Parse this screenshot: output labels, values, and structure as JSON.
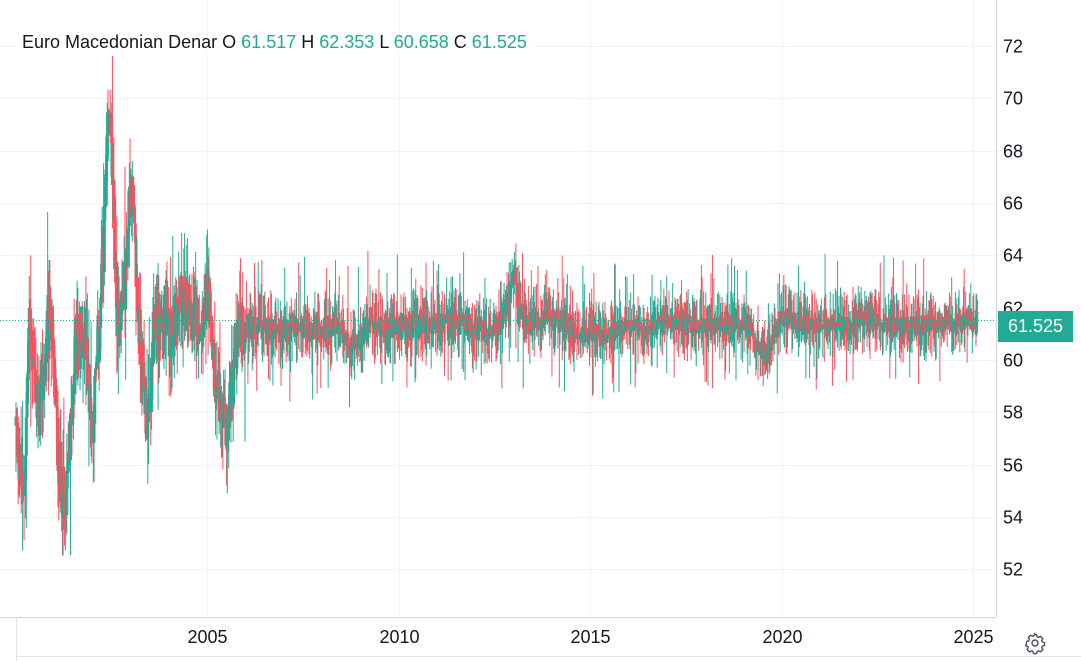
{
  "legend": {
    "symbol": "Euro Macedonian Denar",
    "o_label": "O",
    "o_value": "61.517",
    "h_label": "H",
    "h_value": "62.353",
    "l_label": "L",
    "l_value": "60.658",
    "c_label": "C",
    "c_value": "61.525"
  },
  "last_price": "61.525",
  "colors": {
    "up": "#22ab94",
    "down": "#f7525f",
    "grid": "#f0f3fa",
    "text": "#131722"
  },
  "icons": {
    "settings": "gear-icon"
  },
  "chart_data": {
    "type": "candlestick",
    "title": "Euro Macedonian Denar",
    "x_ticks": [
      "2005",
      "2010",
      "2015",
      "2020",
      "2025"
    ],
    "y_ticks": [
      "52",
      "54",
      "56",
      "58",
      "60",
      "62",
      "64",
      "66",
      "68",
      "70",
      "72"
    ],
    "x_range": [
      2000.0,
      2025.6
    ],
    "y_range": [
      50.18,
      73.76
    ],
    "last_value": 61.525,
    "ohlc_summary": {
      "open": 61.517,
      "high": 62.353,
      "low": 60.658,
      "close": 61.525
    },
    "anchors": [
      [
        2000.0,
        57.5
      ],
      [
        2000.2,
        54.5
      ],
      [
        2000.35,
        61.5
      ],
      [
        2000.6,
        57.8
      ],
      [
        2000.9,
        61.8
      ],
      [
        2001.1,
        56.5
      ],
      [
        2001.3,
        54.0
      ],
      [
        2001.55,
        60.5
      ],
      [
        2001.8,
        61.0
      ],
      [
        2002.0,
        57.5
      ],
      [
        2002.2,
        61.5
      ],
      [
        2002.45,
        69.8
      ],
      [
        2002.65,
        61.3
      ],
      [
        2002.85,
        63.0
      ],
      [
        2003.0,
        67.0
      ],
      [
        2003.2,
        61.5
      ],
      [
        2003.45,
        57.2
      ],
      [
        2003.65,
        61.8
      ],
      [
        2004.0,
        61.0
      ],
      [
        2004.3,
        62.3
      ],
      [
        2004.8,
        61.5
      ],
      [
        2005.0,
        62.5
      ],
      [
        2005.3,
        58.0
      ],
      [
        2005.5,
        57.2
      ],
      [
        2005.8,
        61.3
      ],
      [
        2006.5,
        61.2
      ],
      [
        2007.5,
        61.1
      ],
      [
        2008.3,
        61.3
      ],
      [
        2008.8,
        60.5
      ],
      [
        2009.3,
        61.3
      ],
      [
        2010.0,
        61.2
      ],
      [
        2011.0,
        61.4
      ],
      [
        2012.0,
        61.3
      ],
      [
        2012.5,
        61.0
      ],
      [
        2012.8,
        62.0
      ],
      [
        2013.0,
        63.5
      ],
      [
        2013.3,
        61.3
      ],
      [
        2014.0,
        61.6
      ],
      [
        2015.0,
        61.0
      ],
      [
        2016.0,
        61.2
      ],
      [
        2017.0,
        61.4
      ],
      [
        2018.0,
        61.3
      ],
      [
        2019.0,
        61.3
      ],
      [
        2019.6,
        60.2
      ],
      [
        2020.0,
        61.6
      ],
      [
        2021.0,
        61.3
      ],
      [
        2022.0,
        61.6
      ],
      [
        2023.0,
        61.3
      ],
      [
        2024.0,
        61.4
      ],
      [
        2025.1,
        61.525
      ]
    ]
  }
}
